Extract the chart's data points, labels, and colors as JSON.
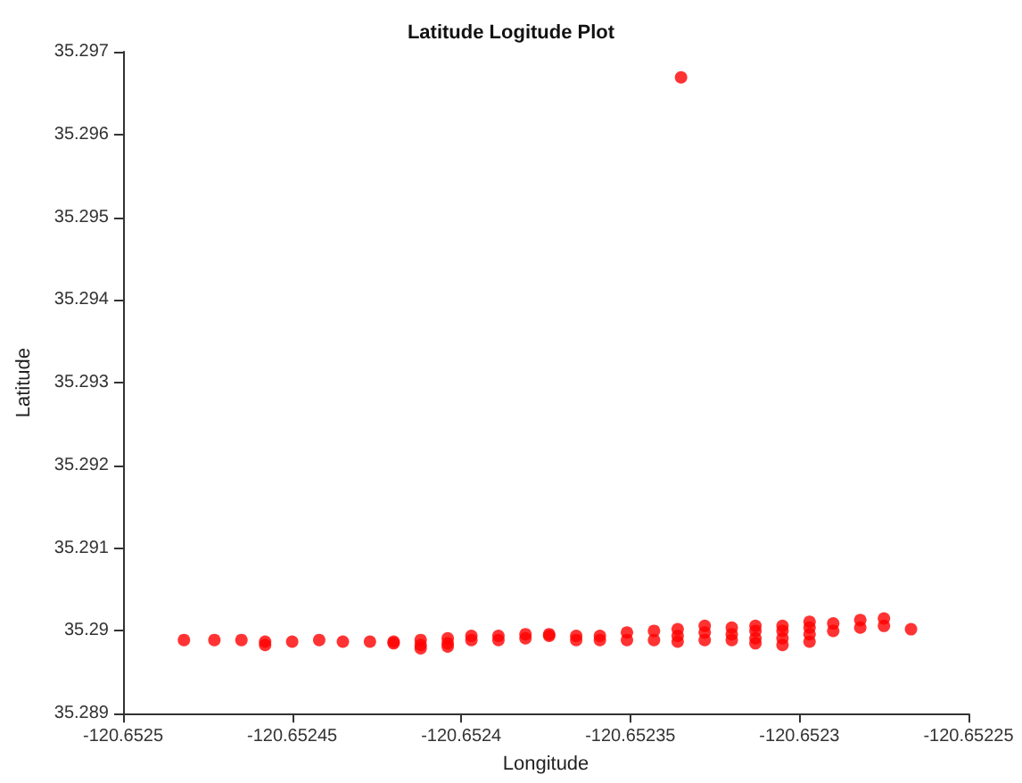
{
  "chart_data": {
    "type": "scatter",
    "title": "Latitude Logitude Plot",
    "xlabel": "Longitude",
    "ylabel": "Latitude",
    "xlim": [
      -120.6525,
      -120.65225
    ],
    "xticks": [
      -120.6525,
      -120.65245,
      -120.6524,
      -120.65235,
      -120.6523,
      -120.65225
    ],
    "ylim": [
      35.289,
      35.297
    ],
    "yticks": [
      35.289,
      35.29,
      35.291,
      35.292,
      35.293,
      35.294,
      35.295,
      35.296,
      35.297
    ],
    "marker": "circle",
    "series": [
      {
        "color": "#ff0000",
        "x": [
          -120.652482,
          -120.652473,
          -120.652465,
          -120.652458,
          -120.652458,
          -120.65245,
          -120.652442,
          -120.652435,
          -120.652427,
          -120.65242,
          -120.65242,
          -120.652412,
          -120.652412,
          -120.652412,
          -120.652404,
          -120.652404,
          -120.652404,
          -120.652397,
          -120.652397,
          -120.652389,
          -120.652389,
          -120.652381,
          -120.652381,
          -120.652374,
          -120.652374,
          -120.652366,
          -120.652366,
          -120.652359,
          -120.652359,
          -120.652351,
          -120.652351,
          -120.652343,
          -120.652343,
          -120.652336,
          -120.652336,
          -120.652336,
          -120.652328,
          -120.652328,
          -120.652328,
          -120.65232,
          -120.65232,
          -120.65232,
          -120.652313,
          -120.652313,
          -120.652313,
          -120.652313,
          -120.652305,
          -120.652305,
          -120.652305,
          -120.652305,
          -120.652297,
          -120.652297,
          -120.652297,
          -120.652297,
          -120.65229,
          -120.65229,
          -120.652282,
          -120.652282,
          -120.652275,
          -120.652275,
          -120.652267,
          -120.652335
        ],
        "values": [
          35.28989,
          35.28989,
          35.28989,
          35.28987,
          35.28983,
          35.28987,
          35.28989,
          35.28987,
          35.28987,
          35.28987,
          35.28985,
          35.28989,
          35.28983,
          35.28979,
          35.28991,
          35.28985,
          35.28981,
          35.28994,
          35.28989,
          35.28994,
          35.28989,
          35.28996,
          35.28991,
          35.28996,
          35.28994,
          35.28994,
          35.28989,
          35.28994,
          35.28989,
          35.28998,
          35.28989,
          35.29,
          35.28989,
          35.29002,
          35.28994,
          35.28987,
          35.29006,
          35.28998,
          35.28989,
          35.29004,
          35.28996,
          35.28989,
          35.29006,
          35.29,
          35.28991,
          35.28985,
          35.29006,
          35.29,
          35.28991,
          35.28983,
          35.29011,
          35.29004,
          35.28996,
          35.28987,
          35.29009,
          35.29,
          35.29013,
          35.29004,
          35.29015,
          35.29006,
          35.29002,
          35.29669
        ]
      }
    ]
  }
}
